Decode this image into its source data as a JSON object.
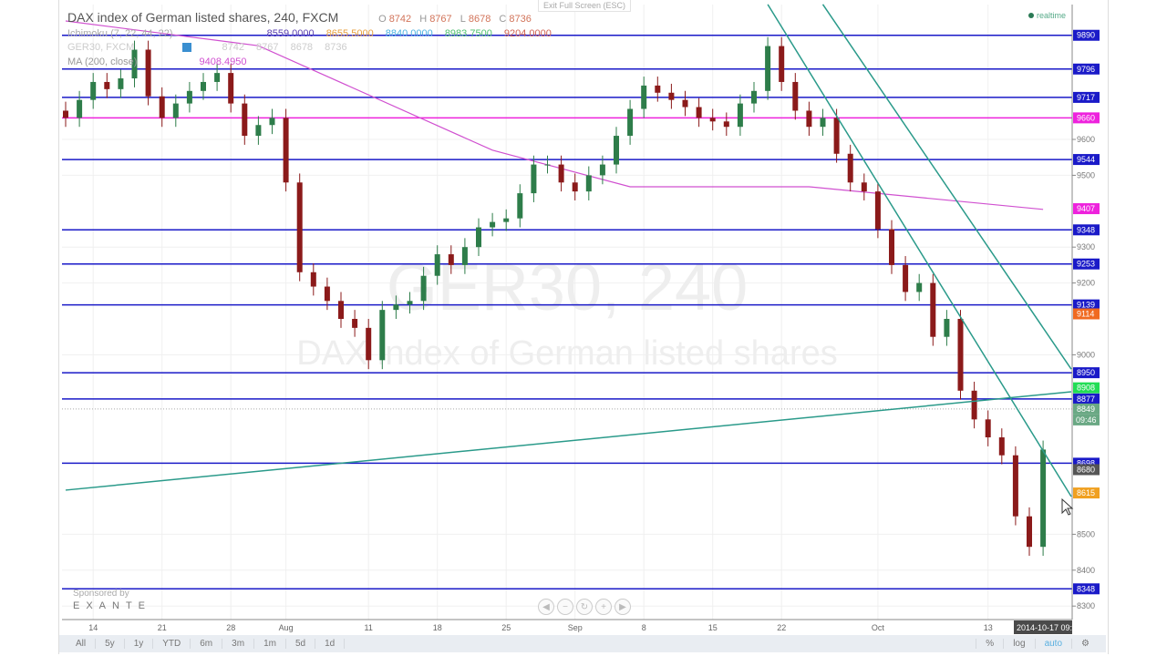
{
  "header": {
    "title": "DAX index of German listed shares, 240, FXCM",
    "ohlc": {
      "o_label": "O",
      "o": "8742",
      "h_label": "H",
      "h": "8767",
      "l_label": "L",
      "l": "8678",
      "c_label": "C",
      "c": "8736"
    },
    "exit_fullscreen": "Exit Full Screen (ESC)",
    "realtime": "realtime"
  },
  "indicators": {
    "ichimoku": {
      "label": "Ichimoku (7, 22, 44, 22)",
      "values": [
        "8559.0000",
        "8655.5000",
        "8840.0000",
        "8983.7500",
        "9204.0000"
      ],
      "colors": [
        "#5a3fb0",
        "#e8a040",
        "#4ab0e0",
        "#4fc070",
        "#d06050"
      ]
    },
    "symbol": {
      "label": "GER30, FXCM",
      "values": [
        "8742",
        "8767",
        "8678",
        "8736"
      ]
    },
    "ma": {
      "label": "MA (200, close)",
      "value": "9408.4950",
      "color": "#d050d0"
    }
  },
  "watermark": {
    "line1": "GER30, 240",
    "line2": "DAX index of German listed shares"
  },
  "sponsor": {
    "label": "Sponsored by",
    "brand": "EXANTE"
  },
  "nav_buttons": [
    "◀",
    "−",
    "↻",
    "+",
    "▶"
  ],
  "toolbar": {
    "ranges": [
      "All",
      "5y",
      "1y",
      "YTD",
      "6m",
      "3m",
      "1m",
      "5d",
      "1d"
    ],
    "right": {
      "percent": "%",
      "log": "log",
      "auto": "auto",
      "settings_icon": "gear-icon"
    }
  },
  "chart_data": {
    "type": "candlestick",
    "title": "DAX index of German listed shares, 240, FXCM",
    "ylim": [
      8270,
      10010
    ],
    "grid": true,
    "price_ticks": [
      9600,
      9500,
      9300,
      9200,
      9000,
      8500,
      8400,
      8300
    ],
    "time_ticks": [
      {
        "label": "14",
        "date": "2014-07-14"
      },
      {
        "label": "21",
        "date": "2014-07-21"
      },
      {
        "label": "28",
        "date": "2014-07-28"
      },
      {
        "label": "Aug",
        "date": "2014-08-01"
      },
      {
        "label": "11",
        "date": "2014-08-11"
      },
      {
        "label": "18",
        "date": "2014-08-18"
      },
      {
        "label": "25",
        "date": "2014-08-25"
      },
      {
        "label": "Sep",
        "date": "2014-09-01"
      },
      {
        "label": "8",
        "date": "2014-09-08"
      },
      {
        "label": "15",
        "date": "2014-09-15"
      },
      {
        "label": "22",
        "date": "2014-09-22"
      },
      {
        "label": "Oct",
        "date": "2014-10-01"
      },
      {
        "label": "13",
        "date": "2014-10-13"
      }
    ],
    "cursor_time": "2014-10-17 09:",
    "dates": [
      "2014-07-10",
      "2014-07-11",
      "2014-07-14",
      "2014-07-15",
      "2014-07-16",
      "2014-07-17",
      "2014-07-18",
      "2014-07-21",
      "2014-07-22",
      "2014-07-23",
      "2014-07-24",
      "2014-07-25",
      "2014-07-28",
      "2014-07-29",
      "2014-07-30",
      "2014-07-31",
      "2014-08-01",
      "2014-08-04",
      "2014-08-05",
      "2014-08-06",
      "2014-08-07",
      "2014-08-08",
      "2014-08-11",
      "2014-08-12",
      "2014-08-13",
      "2014-08-14",
      "2014-08-15",
      "2014-08-18",
      "2014-08-19",
      "2014-08-20",
      "2014-08-21",
      "2014-08-22",
      "2014-08-25",
      "2014-08-26",
      "2014-08-27",
      "2014-08-28",
      "2014-08-29",
      "2014-09-01",
      "2014-09-02",
      "2014-09-03",
      "2014-09-04",
      "2014-09-05",
      "2014-09-08",
      "2014-09-09",
      "2014-09-10",
      "2014-09-11",
      "2014-09-12",
      "2014-09-15",
      "2014-09-16",
      "2014-09-17",
      "2014-09-18",
      "2014-09-19",
      "2014-09-22",
      "2014-09-23",
      "2014-09-24",
      "2014-09-25",
      "2014-09-26",
      "2014-09-29",
      "2014-09-30",
      "2014-10-01",
      "2014-10-02",
      "2014-10-03",
      "2014-10-06",
      "2014-10-07",
      "2014-10-08",
      "2014-10-09",
      "2014-10-10",
      "2014-10-13",
      "2014-10-14",
      "2014-10-15",
      "2014-10-16",
      "2014-10-17"
    ],
    "close": [
      9660,
      9710,
      9760,
      9740,
      9770,
      9850,
      9720,
      9660,
      9700,
      9735,
      9760,
      9785,
      9700,
      9610,
      9640,
      9660,
      9480,
      9230,
      9190,
      9150,
      9100,
      9075,
      8985,
      9125,
      9140,
      9150,
      9220,
      9280,
      9250,
      9300,
      9355,
      9370,
      9380,
      9450,
      9530,
      9530,
      9480,
      9455,
      9500,
      9530,
      9610,
      9685,
      9750,
      9730,
      9710,
      9690,
      9660,
      9650,
      9635,
      9700,
      9735,
      9860,
      9760,
      9680,
      9635,
      9660,
      9560,
      9480,
      9455,
      9350,
      9250,
      9175,
      9200,
      9050,
      9100,
      8900,
      8820,
      8770,
      8720,
      8550,
      8465,
      8736
    ],
    "horizontal_lines": [
      {
        "price": 9890,
        "label": "9890",
        "color": "#1a1ac8"
      },
      {
        "price": 9796,
        "label": "9796",
        "color": "#1a1ac8"
      },
      {
        "price": 9717,
        "label": "9717",
        "color": "#1a1ac8"
      },
      {
        "price": 9660,
        "label": "9660",
        "color": "#ee22dd"
      },
      {
        "price": 9544,
        "label": "9544",
        "color": "#1a1ac8"
      },
      {
        "price": 9348,
        "label": "9348",
        "color": "#1a1ac8"
      },
      {
        "price": 9253,
        "label": "9253",
        "color": "#1a1ac8"
      },
      {
        "price": 9139,
        "label": "9139",
        "color": "#1a1ac8"
      },
      {
        "price": 8950,
        "label": "8950",
        "color": "#1a1ac8"
      },
      {
        "price": 8877,
        "label": "8877",
        "color": "#1a1ac8"
      },
      {
        "price": 8698,
        "label": "8698",
        "color": "#1a1ac8"
      },
      {
        "price": 8348,
        "label": "8348",
        "color": "#1a1ac8"
      }
    ],
    "price_tags": [
      {
        "price": 9407,
        "label": "9407",
        "color": "#ee22dd"
      },
      {
        "price": 9114,
        "label": "9114",
        "color": "#f06a20"
      },
      {
        "price": 8908,
        "label": "8908",
        "color": "#22dd55"
      },
      {
        "price": 8849,
        "label": "8849",
        "color": "#6aa884"
      },
      {
        "price": 8680,
        "label": "8680",
        "color": "#555555"
      },
      {
        "price": 8615,
        "label": "8615",
        "color": "#f0a020"
      }
    ],
    "current_time_tag": "09:46",
    "moving_average": {
      "name": "MA (200, close)",
      "color": "#d050d0",
      "points": [
        [
          "2014-07-10",
          9930
        ],
        [
          "2014-07-30",
          9861
        ],
        [
          "2014-08-22",
          9570
        ],
        [
          "2014-09-05",
          9468
        ],
        [
          "2014-09-24",
          9468
        ],
        [
          "2014-10-17",
          9405
        ]
      ]
    },
    "trendlines": [
      {
        "color": "#2a9a8a",
        "from": [
          "2014-07-10",
          8623
        ],
        "to": [
          "2014-10-17",
          8897
        ]
      },
      {
        "color": "#2a9a8a",
        "from": [
          "2014-09-19",
          9976
        ],
        "to": [
          "2014-10-17",
          8605
        ]
      },
      {
        "color": "#2a9a8a",
        "from": [
          "2014-09-25",
          9976
        ],
        "to": [
          "2014-10-17",
          8960
        ]
      }
    ],
    "colors": {
      "up": "#2e7d4a",
      "down": "#8b1a1a"
    }
  }
}
